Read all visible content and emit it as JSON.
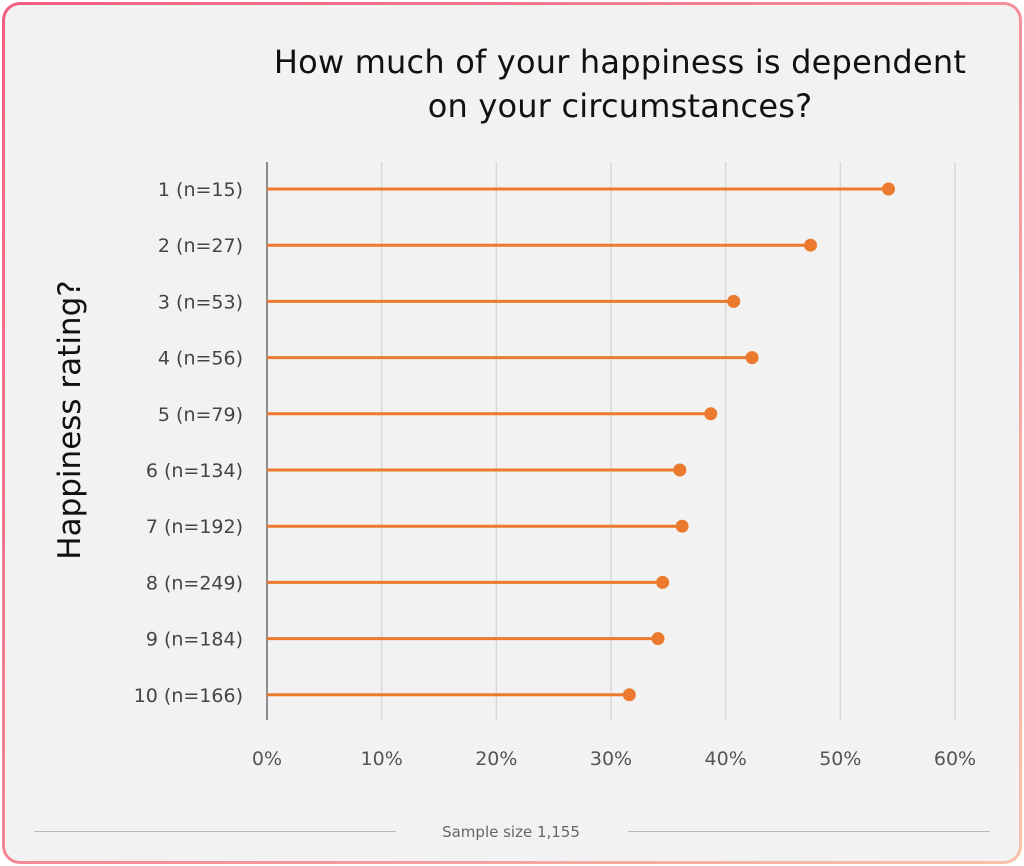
{
  "chart_data": {
    "type": "lollipop",
    "title": "How much of your happiness is dependent on your circumstances?",
    "title_lines": [
      "How much of your happiness is dependent",
      "on your circumstances?"
    ],
    "ylabel": "Happiness rating?",
    "xlabel": "",
    "xlim": [
      0,
      60
    ],
    "x_ticks": [
      "0%",
      "10%",
      "20%",
      "30%",
      "40%",
      "50%",
      "60%"
    ],
    "x_tick_values": [
      0,
      10,
      20,
      30,
      40,
      50,
      60
    ],
    "grid": "vertical",
    "categories": [
      "1 (n=15)",
      "2 (n=27)",
      "3 (n=53)",
      "4 (n=56)",
      "5 (n=79)",
      "6 (n=134)",
      "7 (n=192)",
      "8 (n=249)",
      "9 (n=184)",
      "10 (n=166)"
    ],
    "series": [
      {
        "values": [
          54.2,
          47.4,
          40.7,
          42.3,
          38.7,
          36.0,
          36.2,
          34.5,
          34.1,
          31.6
        ]
      }
    ],
    "color": "#ec7a2e"
  },
  "footer": {
    "sample_size": "Sample size 1,155"
  }
}
